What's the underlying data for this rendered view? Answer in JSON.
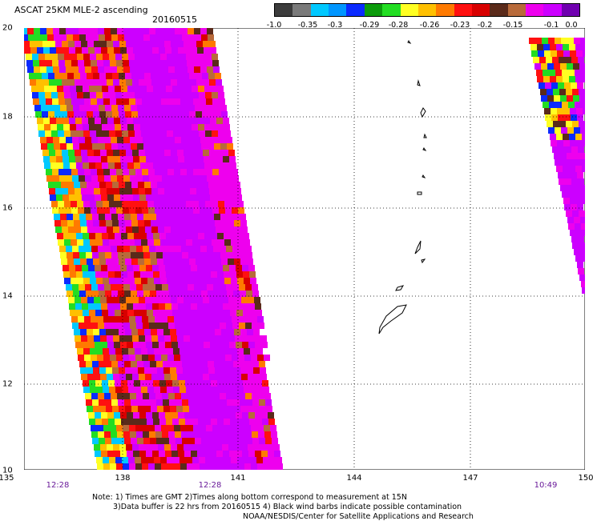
{
  "header": {
    "title": "ASCAT 25KM MLE-2 ascending",
    "date": "20160515"
  },
  "colorbar": {
    "colors": [
      "#3c3c3c",
      "#7a7a7a",
      "#00c8ff",
      "#0096ff",
      "#0a2aff",
      "#0b9b0b",
      "#22dd22",
      "#ffff22",
      "#ffc000",
      "#ff7a00",
      "#ff1010",
      "#d80000",
      "#5a2a1a",
      "#b86a3a",
      "#ee00ee",
      "#cc00ff",
      "#7000b0"
    ],
    "labels": [
      "-1.0",
      "-0.35",
      "-0.3",
      "-0.29",
      "-0.28",
      "-0.26",
      "-0.23",
      "-0.2",
      "-0.15",
      "-0.1",
      "0.0"
    ]
  },
  "map": {
    "lat_labels": [
      "20",
      "18",
      "16",
      "14",
      "12",
      "10"
    ],
    "lon_labels": [
      "135",
      "138",
      "141",
      "144",
      "147",
      "150"
    ],
    "time_labels": [
      "12:28",
      "12:28",
      "10:49"
    ]
  },
  "footer": {
    "note1": "Note: 1) Times are GMT 2)Times along bottom correspond to measurement at 15N",
    "note2": "3)Data buffer is 22 hrs from 20160515 4) Black wind barbs indicate possible contamination",
    "credit": "NOAA/NESDIS/Center for Satellite Applications and Research"
  }
}
